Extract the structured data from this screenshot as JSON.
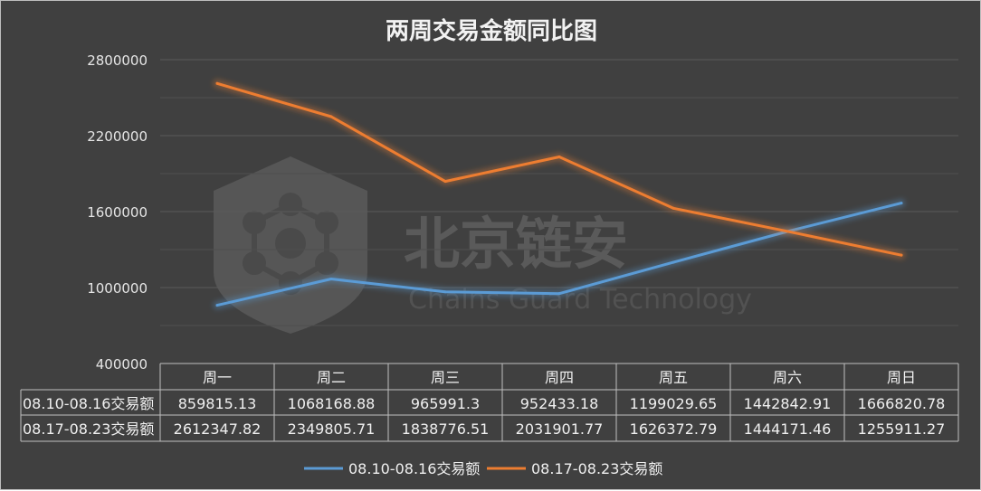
{
  "chart_data": {
    "type": "line",
    "title": "两周交易金额同比图",
    "categories": [
      "周一",
      "周二",
      "周三",
      "周四",
      "周五",
      "周六",
      "周日"
    ],
    "ylim": [
      400000,
      2800000
    ],
    "yticks": [
      "2800000",
      "2200000",
      "1600000",
      "1000000",
      "400000"
    ],
    "grid": true,
    "legend_position": "bottom",
    "series": [
      {
        "name": "08.10-08.16交易额",
        "color": "#5b9bd5",
        "values": [
          859815.13,
          1068168.88,
          965991.3,
          952433.18,
          1199029.65,
          1442842.91,
          1666820.78
        ],
        "labels": [
          "859815.13",
          "1068168.88",
          "965991.3",
          "952433.18",
          "1199029.65",
          "1442842.91",
          "1666820.78"
        ]
      },
      {
        "name": "08.17-08.23交易额",
        "color": "#ed7d31",
        "values": [
          2612347.82,
          2349805.71,
          1838776.51,
          2031901.77,
          1626372.79,
          1444171.46,
          1255911.27
        ],
        "labels": [
          "2612347.82",
          "2349805.71",
          "1838776.51",
          "2031901.77",
          "1626372.79",
          "1444171.46",
          "1255911.27"
        ]
      }
    ]
  },
  "watermark": {
    "text": "北京链安",
    "subtext": "Chains Guard Technology",
    "icon": "chain-node-logo-icon"
  }
}
